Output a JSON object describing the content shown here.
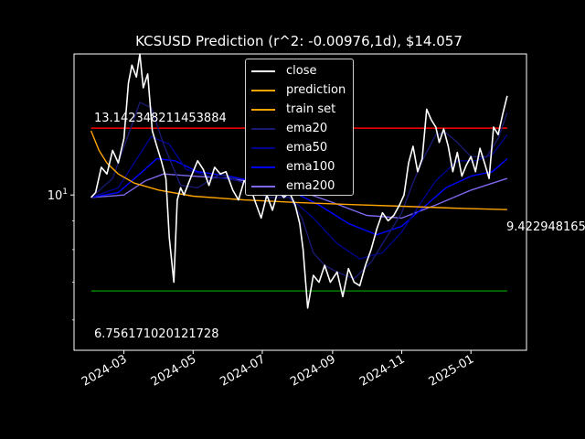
{
  "chart_data": {
    "type": "line",
    "title": "KCSUSD Prediction (r^2: -0.00976,1d), $14.057",
    "xlabel": "",
    "ylabel": "",
    "y_scale": "log",
    "ylim": [
      5.3,
      17.8
    ],
    "xlim": [
      "2024-01-17",
      "2025-02-19"
    ],
    "x_tick_labels": [
      "2024-03",
      "2024-05",
      "2024-07",
      "2024-09",
      "2024-11",
      "2025-01"
    ],
    "y_tick_labels": [
      "10^1"
    ],
    "legend": {
      "placement": "top-center",
      "entries": [
        "close",
        "prediction",
        "train set",
        "ema20",
        "ema50",
        "ema100",
        "ema200"
      ]
    },
    "annotations": {
      "upper_level_label": "13.142348211453884",
      "lower_level_label": "6.756171020121728",
      "prediction_end_label": "9.422948165"
    },
    "levels": {
      "upper": 13.142348211453884,
      "lower": 6.756171020121728
    },
    "series": [
      {
        "name": "close",
        "color": "#ffffff",
        "width": 1.6,
        "x": [
          "2024-02-01",
          "2024-02-05",
          "2024-02-10",
          "2024-02-15",
          "2024-02-20",
          "2024-02-25",
          "2024-03-01",
          "2024-03-05",
          "2024-03-08",
          "2024-03-12",
          "2024-03-15",
          "2024-03-18",
          "2024-03-22",
          "2024-03-26",
          "2024-03-30",
          "2024-04-03",
          "2024-04-07",
          "2024-04-10",
          "2024-04-14",
          "2024-04-17",
          "2024-04-20",
          "2024-04-23",
          "2024-04-27",
          "2024-05-01",
          "2024-05-05",
          "2024-05-10",
          "2024-05-15",
          "2024-05-20",
          "2024-05-25",
          "2024-05-30",
          "2024-06-05",
          "2024-06-10",
          "2024-06-15",
          "2024-06-20",
          "2024-06-25",
          "2024-06-30",
          "2024-07-05",
          "2024-07-10",
          "2024-07-15",
          "2024-07-20",
          "2024-07-25",
          "2024-07-30",
          "2024-08-03",
          "2024-08-06",
          "2024-08-10",
          "2024-08-15",
          "2024-08-20",
          "2024-08-25",
          "2024-08-30",
          "2024-09-05",
          "2024-09-10",
          "2024-09-15",
          "2024-09-20",
          "2024-09-25",
          "2024-09-30",
          "2024-10-05",
          "2024-10-10",
          "2024-10-15",
          "2024-10-20",
          "2024-10-25",
          "2024-10-30",
          "2024-11-03",
          "2024-11-07",
          "2024-11-11",
          "2024-11-15",
          "2024-11-19",
          "2024-11-23",
          "2024-11-27",
          "2024-12-01",
          "2024-12-04",
          "2024-12-08",
          "2024-12-12",
          "2024-12-16",
          "2024-12-20",
          "2024-12-24",
          "2024-12-28",
          "2025-01-01",
          "2025-01-05",
          "2025-01-09",
          "2025-01-13",
          "2025-01-17",
          "2025-01-21",
          "2025-01-25",
          "2025-01-29",
          "2025-02-02"
        ],
        "y": [
          9.9,
          10.1,
          11.2,
          10.9,
          12.0,
          11.4,
          12.6,
          15.8,
          17.0,
          16.2,
          17.8,
          15.5,
          16.4,
          13.0,
          12.2,
          11.5,
          10.7,
          8.4,
          7.0,
          9.8,
          10.3,
          10.0,
          10.5,
          11.0,
          11.5,
          11.1,
          10.4,
          11.2,
          10.9,
          11.0,
          10.2,
          9.8,
          10.6,
          10.4,
          9.7,
          9.1,
          10.0,
          9.4,
          10.2,
          9.9,
          10.1,
          9.6,
          8.9,
          8.0,
          6.3,
          7.2,
          7.0,
          7.5,
          7.0,
          7.3,
          6.6,
          7.4,
          7.0,
          6.9,
          7.5,
          8.0,
          8.7,
          9.3,
          9.0,
          9.2,
          9.6,
          10.0,
          11.4,
          12.2,
          11.0,
          11.6,
          14.2,
          13.6,
          13.2,
          12.4,
          13.1,
          12.2,
          11.0,
          11.9,
          10.8,
          11.3,
          11.7,
          11.0,
          12.1,
          11.4,
          10.7,
          13.2,
          12.8,
          13.9,
          15.0
        ]
      },
      {
        "name": "ema20",
        "color": "#191970",
        "width": 1.4,
        "x": [
          "2024-02-01",
          "2024-02-20",
          "2024-03-05",
          "2024-03-15",
          "2024-03-25",
          "2024-04-05",
          "2024-04-20",
          "2024-05-05",
          "2024-05-25",
          "2024-06-15",
          "2024-07-05",
          "2024-07-25",
          "2024-08-05",
          "2024-08-15",
          "2024-08-25",
          "2024-09-05",
          "2024-09-20",
          "2024-10-05",
          "2024-10-20",
          "2024-11-01",
          "2024-11-10",
          "2024-11-20",
          "2024-12-01",
          "2024-12-10",
          "2024-12-20",
          "2025-01-01",
          "2025-01-15",
          "2025-01-25",
          "2025-02-02"
        ],
        "y": [
          9.9,
          10.7,
          12.8,
          14.6,
          14.3,
          12.3,
          10.4,
          10.3,
          10.9,
          10.5,
          9.9,
          9.9,
          9.1,
          7.9,
          7.5,
          7.3,
          7.1,
          7.6,
          8.5,
          9.3,
          10.4,
          11.6,
          12.8,
          12.9,
          12.4,
          11.7,
          11.7,
          12.6,
          14.0
        ]
      },
      {
        "name": "ema50",
        "color": "#00008b",
        "width": 1.4,
        "x": [
          "2024-02-01",
          "2024-02-25",
          "2024-03-10",
          "2024-03-25",
          "2024-04-10",
          "2024-04-25",
          "2024-05-15",
          "2024-06-10",
          "2024-07-05",
          "2024-07-25",
          "2024-08-15",
          "2024-09-05",
          "2024-09-25",
          "2024-10-15",
          "2024-11-01",
          "2024-11-15",
          "2024-12-01",
          "2024-12-20",
          "2025-01-05",
          "2025-01-20",
          "2025-02-02"
        ],
        "y": [
          9.9,
          10.3,
          11.4,
          12.7,
          12.3,
          11.1,
          10.8,
          10.6,
          10.1,
          9.9,
          9.1,
          8.2,
          7.7,
          7.9,
          8.6,
          9.5,
          10.6,
          11.5,
          11.5,
          11.8,
          12.8
        ]
      },
      {
        "name": "ema100",
        "color": "#0000ff",
        "width": 1.4,
        "x": [
          "2024-02-01",
          "2024-02-25",
          "2024-03-15",
          "2024-03-30",
          "2024-04-15",
          "2024-05-05",
          "2024-06-01",
          "2024-07-01",
          "2024-07-25",
          "2024-08-20",
          "2024-09-15",
          "2024-10-10",
          "2024-11-01",
          "2024-11-20",
          "2024-12-10",
          "2025-01-01",
          "2025-01-20",
          "2025-02-02"
        ],
        "y": [
          9.9,
          10.1,
          10.9,
          11.6,
          11.5,
          11.0,
          10.8,
          10.5,
          10.2,
          9.6,
          8.9,
          8.5,
          8.8,
          9.5,
          10.3,
          10.8,
          11.0,
          11.6
        ]
      },
      {
        "name": "ema200",
        "color": "#7b68ee",
        "width": 1.4,
        "x": [
          "2024-02-01",
          "2024-03-01",
          "2024-03-20",
          "2024-04-05",
          "2024-05-01",
          "2024-06-01",
          "2024-07-01",
          "2024-08-01",
          "2024-09-01",
          "2024-10-01",
          "2024-11-01",
          "2024-12-01",
          "2025-01-01",
          "2025-02-02"
        ],
        "y": [
          9.9,
          10.0,
          10.6,
          10.9,
          10.8,
          10.7,
          10.5,
          10.2,
          9.7,
          9.2,
          9.1,
          9.6,
          10.2,
          10.7
        ]
      },
      {
        "name": "prediction",
        "color": "#ffa500",
        "width": 1.4,
        "x": [
          "2024-02-01",
          "2024-02-08",
          "2024-02-15",
          "2024-02-25",
          "2024-03-10",
          "2024-04-01",
          "2024-05-01",
          "2024-06-15",
          "2024-08-01",
          "2024-09-15",
          "2024-11-01",
          "2024-12-15",
          "2025-02-02"
        ],
        "y": [
          13.0,
          12.0,
          11.4,
          10.9,
          10.5,
          10.2,
          9.95,
          9.8,
          9.7,
          9.62,
          9.55,
          9.48,
          9.42
        ]
      }
    ]
  }
}
